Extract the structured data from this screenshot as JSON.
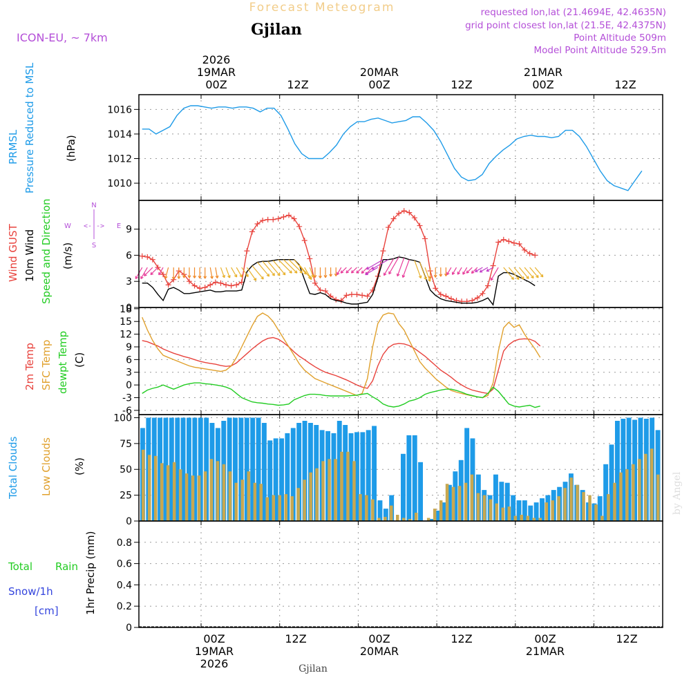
{
  "header": {
    "title": "Forecast Meteogram",
    "location": "Gjilan",
    "model": "ICON-EU, ~ 7km",
    "requested": "requested lon,lat (21.4694E, 42.4635N)",
    "gridpoint": "grid point closest lon,lat (21.5E, 42.4375N)",
    "altitude": "Point Altitude 509m",
    "model_altitude": "Model Point Altitude 529.5m",
    "footer_location": "Gjilan",
    "credit": "by Angel"
  },
  "time_axis": {
    "year": "2026",
    "ticks": [
      {
        "label": "00Z",
        "date": "19MAR",
        "year": "2026"
      },
      {
        "label": "12Z",
        "date": "",
        "year": ""
      },
      {
        "label": "00Z",
        "date": "20MAR",
        "year": ""
      },
      {
        "label": "12Z",
        "date": "",
        "year": ""
      },
      {
        "label": "00Z",
        "date": "21MAR",
        "year": ""
      },
      {
        "label": "12Z",
        "date": "",
        "year": ""
      }
    ]
  },
  "panel_labels": {
    "pressure": [
      "PRMSL",
      "Pressure Reduced to MSL",
      "(hPa)"
    ],
    "wind": [
      "Wind GUST",
      "10m Wind",
      "Speed and Direction",
      "(m/s)"
    ],
    "compass": {
      "n": "N",
      "s": "S",
      "w": "W",
      "e": "E",
      "arrow": "<-|->"
    },
    "temp": [
      "2m Temp",
      "SFC Temp",
      "dewpt Temp",
      "(C)"
    ],
    "clouds": [
      "Total Clouds",
      "Low Clouds",
      "(%)"
    ],
    "precip": [
      "Total",
      "Rain",
      "Snow/1h",
      "[cm]",
      "1hr Precip (mm)"
    ]
  },
  "colors": {
    "pressure": "#1e9be8",
    "gust": "#e8423c",
    "wind": "#000000",
    "t2m": "#e8423c",
    "sfc": "#e0a02c",
    "dew": "#22cc22",
    "total_cloud": "#1e9be8",
    "low_cloud": "#c8a850",
    "label_purple": "#b44fd8",
    "label_orange": "#e0a02c",
    "label_green": "#22cc22",
    "label_blue": "#3344dd",
    "title_faded": "#f2cd8a"
  },
  "chart_data": [
    {
      "type": "line",
      "title": "PRMSL",
      "ylabel": "(hPa)",
      "ylim": [
        1008.6,
        1017.2
      ],
      "yticks": [
        1010,
        1012,
        1014,
        1016
      ],
      "x_hours_start": -9,
      "x_hours_step": 1,
      "values": [
        1014.4,
        1014.4,
        1014.0,
        1014.3,
        1014.6,
        1015.5,
        1016.1,
        1016.3,
        1016.3,
        1016.2,
        1016.1,
        1016.2,
        1016.2,
        1016.1,
        1016.2,
        1016.2,
        1016.1,
        1015.8,
        1016.1,
        1016.1,
        1015.5,
        1014.4,
        1013.2,
        1012.4,
        1012.0,
        1012.0,
        1012.0,
        1012.5,
        1013.1,
        1014.0,
        1014.6,
        1015.0,
        1015.0,
        1015.2,
        1015.3,
        1015.1,
        1014.9,
        1015.0,
        1015.1,
        1015.4,
        1015.4,
        1014.9,
        1014.3,
        1013.4,
        1012.3,
        1011.2,
        1010.5,
        1010.2,
        1010.3,
        1010.7,
        1011.6,
        1012.2,
        1012.7,
        1013.1,
        1013.6,
        1013.8,
        1013.9,
        1013.8,
        1013.8,
        1013.7,
        1013.8,
        1014.3,
        1014.3,
        1013.8,
        1013.0,
        1012.0,
        1011.0,
        1010.2,
        1009.8,
        1009.6,
        1009.4,
        1010.2,
        1011.0
      ]
    },
    {
      "type": "line",
      "title": "Wind GUST / 10m Wind",
      "ylabel": "(m/s)",
      "ylim": [
        0,
        12.3
      ],
      "yticks": [
        0,
        3,
        6,
        9
      ],
      "x_hours_start": -9,
      "x_hours_step": 1,
      "series": [
        {
          "name": "Wind GUST",
          "values": [
            5.9,
            5.8,
            5.5,
            4.6,
            3.8,
            2.6,
            3.2,
            4.2,
            3.8,
            3.0,
            2.5,
            2.2,
            2.3,
            2.6,
            2.9,
            2.8,
            2.6,
            2.5,
            2.6,
            2.9,
            6.5,
            8.7,
            9.6,
            10.0,
            10.1,
            10.1,
            10.2,
            10.4,
            10.6,
            10.2,
            9.3,
            7.7,
            5.6,
            2.8,
            2.0,
            1.9,
            1.3,
            0.9,
            0.8,
            1.4,
            1.5,
            1.5,
            1.4,
            1.3,
            2.0,
            3.6,
            6.5,
            9.2,
            10.2,
            10.8,
            11.1,
            10.9,
            10.3,
            9.4,
            7.9,
            4.2,
            2.2,
            1.5,
            1.3,
            1.0,
            0.8,
            0.7,
            0.7,
            0.8,
            1.1,
            1.6,
            2.5,
            4.8,
            7.5,
            7.8,
            7.6,
            7.4,
            7.3,
            6.6,
            6.2,
            6.0
          ]
        },
        {
          "name": "10m Wind",
          "values": [
            2.8,
            2.8,
            2.3,
            1.5,
            0.8,
            2.1,
            2.3,
            2.0,
            1.6,
            1.6,
            1.7,
            1.8,
            1.9,
            2.0,
            1.8,
            1.8,
            1.9,
            1.9,
            1.9,
            2.0,
            4.1,
            4.8,
            5.2,
            5.3,
            5.3,
            5.4,
            5.5,
            5.5,
            5.5,
            5.5,
            4.9,
            3.2,
            1.6,
            1.5,
            1.7,
            1.5,
            1.0,
            0.8,
            0.7,
            0.5,
            0.4,
            0.4,
            0.5,
            0.6,
            1.5,
            3.4,
            5.5,
            5.5,
            5.6,
            5.8,
            5.7,
            5.5,
            5.4,
            5.2,
            3.6,
            2.0,
            1.4,
            1.0,
            0.8,
            0.7,
            0.6,
            0.5,
            0.5,
            0.5,
            0.6,
            0.8,
            1.1,
            0.3,
            3.6,
            4.0,
            4.0,
            3.8,
            3.5,
            3.2,
            2.9,
            2.5
          ]
        }
      ],
      "arrow_dirs_deg": [
        330,
        330,
        315,
        315,
        330,
        345,
        0,
        0,
        0,
        0,
        0,
        0,
        0,
        10,
        10,
        20,
        20,
        30,
        30,
        35,
        35,
        40,
        40,
        40,
        40,
        40,
        45,
        45,
        45,
        40,
        40,
        30,
        20,
        0,
        0,
        0,
        0,
        0,
        330,
        315,
        315,
        315,
        315,
        315,
        315,
        300,
        300,
        300,
        330,
        330,
        340,
        340,
        20,
        20,
        20,
        0,
        0,
        0,
        0,
        330,
        330,
        330,
        330,
        315,
        315,
        300,
        300,
        300,
        330,
        40,
        40,
        40,
        40,
        40,
        40,
        40
      ]
    },
    {
      "type": "line",
      "title": "Temperatures",
      "ylabel": "(C)",
      "ylim": [
        -7,
        18.3
      ],
      "yticks": [
        -6,
        -3,
        0,
        3,
        6,
        9,
        12,
        15,
        18
      ],
      "x_hours_start": -9,
      "x_hours_step": 1,
      "series": [
        {
          "name": "2m Temp",
          "values": [
            10.5,
            10.2,
            9.7,
            9.2,
            8.5,
            8.0,
            7.5,
            7.1,
            6.7,
            6.4,
            6.0,
            5.6,
            5.3,
            5.1,
            4.9,
            4.6,
            4.4,
            4.5,
            5.2,
            6.3,
            7.4,
            8.5,
            9.5,
            10.4,
            11.0,
            11.2,
            10.8,
            10.0,
            9.0,
            7.8,
            6.8,
            6.0,
            5.1,
            4.3,
            3.6,
            3.0,
            2.6,
            2.2,
            1.7,
            1.2,
            0.6,
            0.0,
            -0.5,
            -0.8,
            1.0,
            4.5,
            7.2,
            8.8,
            9.6,
            9.8,
            9.7,
            9.3,
            8.6,
            7.7,
            6.8,
            5.7,
            4.6,
            3.5,
            2.7,
            1.8,
            0.8,
            0.0,
            -0.7,
            -1.2,
            -1.5,
            -1.8,
            -2.0,
            -1.0,
            3.5,
            8.0,
            9.5,
            10.4,
            10.8,
            10.9,
            10.8,
            10.3,
            9.2
          ]
        },
        {
          "name": "SFC Temp",
          "values": [
            16.0,
            13.0,
            10.5,
            8.5,
            7.0,
            6.5,
            6.0,
            5.5,
            5.0,
            4.5,
            4.2,
            4.0,
            3.8,
            3.6,
            3.4,
            3.2,
            3.5,
            4.5,
            6.5,
            9.0,
            11.5,
            14.0,
            16.2,
            17.0,
            16.3,
            15.0,
            13.0,
            11.0,
            9.0,
            7.0,
            5.0,
            3.5,
            2.5,
            1.5,
            1.0,
            0.5,
            0.0,
            -0.5,
            -1.0,
            -1.5,
            -2.0,
            -2.5,
            -2.0,
            1.5,
            9.0,
            14.5,
            16.5,
            17.0,
            16.8,
            14.5,
            13.0,
            10.5,
            8.0,
            5.5,
            4.0,
            2.8,
            1.5,
            0.5,
            -0.5,
            -1.3,
            -1.7,
            -2.0,
            -2.3,
            -2.6,
            -2.8,
            -3.0,
            -2.5,
            0.5,
            8.0,
            13.5,
            14.8,
            13.6,
            14.2,
            12.0,
            10.2,
            8.5,
            6.5
          ]
        },
        {
          "name": "dewpt Temp",
          "values": [
            -2.0,
            -1.2,
            -0.8,
            -0.5,
            0.0,
            -0.5,
            -1.0,
            -0.5,
            0.0,
            0.3,
            0.5,
            0.5,
            0.3,
            0.2,
            0.0,
            -0.2,
            -0.5,
            -1.0,
            -2.0,
            -3.0,
            -3.5,
            -4.0,
            -4.2,
            -4.3,
            -4.5,
            -4.6,
            -4.8,
            -4.7,
            -4.5,
            -3.5,
            -3.0,
            -2.5,
            -2.2,
            -2.2,
            -2.3,
            -2.5,
            -2.6,
            -2.6,
            -2.6,
            -2.6,
            -2.5,
            -2.4,
            -2.2,
            -2.0,
            -2.8,
            -3.5,
            -4.5,
            -5.0,
            -5.2,
            -5.0,
            -4.5,
            -3.8,
            -3.5,
            -3.0,
            -2.2,
            -1.8,
            -1.5,
            -1.2,
            -1.0,
            -1.0,
            -1.3,
            -1.7,
            -2.2,
            -2.5,
            -2.8,
            -3.0,
            -2.0,
            -0.5,
            -1.5,
            -3.0,
            -4.5,
            -5.0,
            -5.2,
            -5.0,
            -4.8,
            -5.3,
            -5.0
          ]
        }
      ]
    },
    {
      "type": "bar",
      "title": "Clouds",
      "ylabel": "(%)",
      "ylim": [
        0,
        103
      ],
      "yticks": [
        0,
        25,
        50,
        75,
        100
      ],
      "x_hours_start": -9,
      "x_hours_step": 1,
      "series": [
        {
          "name": "Total Clouds",
          "values": [
            90,
            100,
            100,
            100,
            100,
            100,
            100,
            100,
            100,
            100,
            100,
            100,
            95,
            90,
            97,
            100,
            100,
            100,
            100,
            100,
            100,
            95,
            78,
            80,
            80,
            85,
            90,
            95,
            97,
            95,
            93,
            88,
            87,
            85,
            97,
            93,
            85,
            86,
            86,
            88,
            92,
            20,
            12,
            25,
            0,
            65,
            83,
            83,
            57,
            0,
            2,
            10,
            18,
            35,
            48,
            59,
            90,
            80,
            45,
            30,
            25,
            45,
            38,
            37,
            25,
            20,
            20,
            15,
            18,
            22,
            25,
            30,
            33,
            38,
            46,
            35,
            30,
            18,
            17,
            24,
            55,
            74,
            97,
            99,
            100,
            98,
            100,
            99,
            100,
            88
          ]
        },
        {
          "name": "Low Clouds",
          "values": [
            69,
            64,
            63,
            56,
            54,
            57,
            50,
            46,
            44,
            44,
            48,
            60,
            58,
            55,
            48,
            37,
            40,
            48,
            37,
            36,
            23,
            25,
            25,
            26,
            24,
            32,
            40,
            47,
            51,
            58,
            60,
            60,
            67,
            67,
            58,
            26,
            25,
            21,
            3,
            4,
            15,
            6,
            3,
            2,
            8,
            0,
            3,
            12,
            20,
            36,
            33,
            34,
            37,
            45,
            27,
            25,
            21,
            17,
            13,
            14,
            5,
            6,
            5,
            3,
            3,
            18,
            20,
            24,
            32,
            42,
            35,
            28,
            25,
            16,
            5,
            26,
            37,
            47,
            50,
            55,
            60,
            65,
            70,
            45
          ]
        }
      ]
    },
    {
      "type": "bar",
      "title": "1hr Precip",
      "ylabel": "1hr Precip (mm)",
      "ylim": [
        0,
        1.0
      ],
      "yticks": [
        0,
        0.2,
        0.4,
        0.6,
        0.8
      ],
      "series": [
        {
          "name": "Total Rain",
          "values": []
        },
        {
          "name": "Snow/1h",
          "values": []
        }
      ]
    }
  ]
}
